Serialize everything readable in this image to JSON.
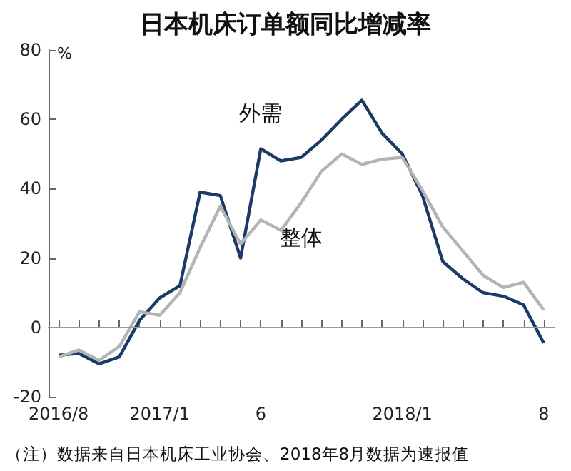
{
  "chart_data": {
    "type": "line",
    "title": "日本机床订单额同比增减率",
    "ylabel": "%",
    "categories": [
      "2016/8",
      null,
      null,
      null,
      null,
      "2017/1",
      null,
      null,
      null,
      null,
      "6",
      null,
      null,
      null,
      null,
      null,
      null,
      "2018/1",
      null,
      null,
      null,
      null,
      null,
      null,
      "8"
    ],
    "series": [
      {
        "name": "外需",
        "color": "#1b3a68",
        "values": [
          -8,
          -7.5,
          -10.5,
          -8.5,
          2,
          8.5,
          12,
          39,
          38,
          20,
          51.5,
          48,
          49,
          54,
          60,
          65.5,
          56,
          50,
          38,
          19,
          14,
          10,
          9,
          6.5,
          -4.5
        ]
      },
      {
        "name": "整体",
        "color": "#b4b4b4",
        "values": [
          -8.5,
          -6.5,
          -9.5,
          -5.5,
          4.5,
          3.5,
          10,
          23,
          35,
          24,
          31,
          28,
          36,
          45,
          50,
          47,
          48.5,
          49,
          39.5,
          29,
          22,
          15,
          11.5,
          13,
          5
        ]
      }
    ],
    "ylim": [
      -20,
      80
    ],
    "yticks": [
      -20,
      0,
      20,
      40,
      60,
      80
    ],
    "grid": false,
    "legend": false,
    "marker": "none",
    "line_style": "solid",
    "ref_lines": [
      {
        "axis": "y",
        "value": 0,
        "color": "#999999"
      }
    ],
    "annotations": [
      "（注）数据来自日本机床工业协会、2018年8月数据为速报值"
    ]
  }
}
